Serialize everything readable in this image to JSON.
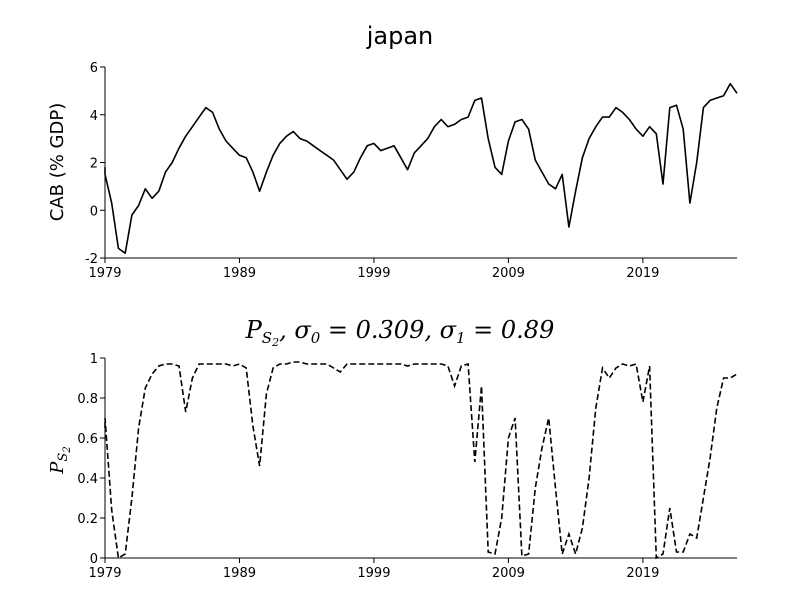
{
  "chart_data": [
    {
      "type": "line",
      "title": "japan",
      "xlabel": "",
      "ylabel": "CAB (% GDP)",
      "xlim": [
        1979,
        2026
      ],
      "ylim": [
        -2,
        6
      ],
      "xticks": [
        1979,
        1989,
        1999,
        2009,
        2019
      ],
      "xtick_labels": [
        "1979",
        "1989",
        "1999",
        "2009",
        "2019"
      ],
      "yticks": [
        -2,
        0,
        2,
        4,
        6
      ],
      "ytick_labels": [
        "-2",
        "0",
        "2",
        "4",
        "6"
      ],
      "grid": false,
      "series": [
        {
          "name": "CAB",
          "style": "solid",
          "x": [
            1978.5,
            1979,
            1979.5,
            1980,
            1980.5,
            1981,
            1981.5,
            1982,
            1982.5,
            1983,
            1983.5,
            1984,
            1984.5,
            1985,
            1985.5,
            1986,
            1986.5,
            1987,
            1987.5,
            1988,
            1988.5,
            1989,
            1989.5,
            1990,
            1990.5,
            1991,
            1991.5,
            1992,
            1992.5,
            1993,
            1993.5,
            1994,
            1994.5,
            1995,
            1995.5,
            1996,
            1996.5,
            1997,
            1997.5,
            1998,
            1998.5,
            1999,
            1999.5,
            2000,
            2000.5,
            2001,
            2001.5,
            2002,
            2002.5,
            2003,
            2003.5,
            2004,
            2004.5,
            2005,
            2005.5,
            2006,
            2006.5,
            2007,
            2007.5,
            2008,
            2008.5,
            2009,
            2009.5,
            2010,
            2010.5,
            2011,
            2011.5,
            2012,
            2012.5,
            2013,
            2013.5,
            2014,
            2014.5,
            2015,
            2015.5,
            2016,
            2016.5,
            2017,
            2017.5,
            2018,
            2018.5,
            2019,
            2019.5,
            2020,
            2020.5,
            2021,
            2021.5,
            2022,
            2022.5,
            2023,
            2023.5,
            2024,
            2024.5,
            2025,
            2025.5,
            2026
          ],
          "values": [
            1.8,
            1.5,
            0.3,
            -1.6,
            -1.8,
            -0.2,
            0.2,
            0.9,
            0.5,
            0.8,
            1.6,
            2.0,
            2.6,
            3.1,
            3.5,
            3.9,
            4.3,
            4.1,
            3.4,
            2.9,
            2.6,
            2.3,
            2.2,
            1.6,
            0.8,
            1.6,
            2.3,
            2.8,
            3.1,
            3.3,
            3.0,
            2.9,
            2.7,
            2.5,
            2.3,
            2.1,
            1.7,
            1.3,
            1.6,
            2.2,
            2.7,
            2.8,
            2.5,
            2.6,
            2.7,
            2.2,
            1.7,
            2.4,
            2.7,
            3.0,
            3.5,
            3.8,
            3.5,
            3.6,
            3.8,
            3.9,
            4.6,
            4.7,
            3.0,
            1.8,
            1.5,
            2.9,
            3.7,
            3.8,
            3.4,
            2.1,
            1.6,
            1.1,
            0.9,
            1.5,
            -0.7,
            0.8,
            2.2,
            3.0,
            3.5,
            3.9,
            3.9,
            4.3,
            4.1,
            3.8,
            3.4,
            3.1,
            3.5,
            3.2,
            1.1,
            4.3,
            4.4,
            3.4,
            0.3,
            2.0,
            4.3,
            4.6,
            4.7,
            4.8,
            5.3,
            4.9
          ]
        }
      ]
    },
    {
      "type": "line",
      "title_parts": [
        "P",
        "S",
        "2",
        ", σ",
        "0",
        " = 0.309, σ",
        "1",
        " = 0.89"
      ],
      "xlabel": "",
      "ylabel_parts": [
        "P",
        "S",
        "2"
      ],
      "xlim": [
        1979,
        2026
      ],
      "ylim": [
        0,
        1
      ],
      "xticks": [
        1979,
        1989,
        1999,
        2009,
        2019
      ],
      "xtick_labels": [
        "1979",
        "1989",
        "1999",
        "2009",
        "2019"
      ],
      "yticks": [
        0,
        0.2,
        0.4,
        0.6,
        0.8,
        1
      ],
      "ytick_labels": [
        "0",
        "0.2",
        "0.4",
        "0.6",
        "0.8",
        "1"
      ],
      "grid": false,
      "series": [
        {
          "name": "P_S2",
          "style": "dashed",
          "x": [
            1978.5,
            1979,
            1979.5,
            1980,
            1980.5,
            1981,
            1981.5,
            1982,
            1982.5,
            1983,
            1983.5,
            1984,
            1984.5,
            1985,
            1985.5,
            1986,
            1986.5,
            1987,
            1987.5,
            1988,
            1988.5,
            1989,
            1989.5,
            1990,
            1990.5,
            1991,
            1991.5,
            1992,
            1992.5,
            1993,
            1993.5,
            1994,
            1994.5,
            1995,
            1995.5,
            1996,
            1996.5,
            1997,
            1997.5,
            1998,
            1998.5,
            1999,
            1999.5,
            2000,
            2000.5,
            2001,
            2001.5,
            2002,
            2002.5,
            2003,
            2003.5,
            2004,
            2004.5,
            2005,
            2005.5,
            2006,
            2006.5,
            2007,
            2007.5,
            2008,
            2008.5,
            2009,
            2009.5,
            2010,
            2010.5,
            2011,
            2011.5,
            2012,
            2012.5,
            2013,
            2013.5,
            2014,
            2014.5,
            2015,
            2015.5,
            2016,
            2016.5,
            2017,
            2017.5,
            2018,
            2018.5,
            2019,
            2019.5,
            2020,
            2020.5,
            2021,
            2021.5,
            2022,
            2022.5,
            2023,
            2023.5,
            2024,
            2024.5,
            2025,
            2025.5,
            2026
          ],
          "values": [
            0.65,
            0.7,
            0.24,
            0.0,
            0.02,
            0.3,
            0.65,
            0.85,
            0.92,
            0.96,
            0.97,
            0.97,
            0.96,
            0.73,
            0.9,
            0.97,
            0.97,
            0.97,
            0.97,
            0.97,
            0.96,
            0.97,
            0.95,
            0.66,
            0.46,
            0.82,
            0.95,
            0.97,
            0.97,
            0.98,
            0.98,
            0.97,
            0.97,
            0.97,
            0.97,
            0.95,
            0.93,
            0.97,
            0.97,
            0.97,
            0.97,
            0.97,
            0.97,
            0.97,
            0.97,
            0.97,
            0.96,
            0.97,
            0.97,
            0.97,
            0.97,
            0.97,
            0.96,
            0.86,
            0.96,
            0.97,
            0.48,
            0.86,
            0.03,
            0.02,
            0.2,
            0.6,
            0.7,
            0.01,
            0.02,
            0.35,
            0.55,
            0.7,
            0.35,
            0.02,
            0.12,
            0.02,
            0.15,
            0.4,
            0.75,
            0.95,
            0.9,
            0.95,
            0.97,
            0.96,
            0.97,
            0.78,
            0.96,
            0.0,
            0.02,
            0.25,
            0.03,
            0.03,
            0.12,
            0.1,
            0.3,
            0.5,
            0.75,
            0.9,
            0.9,
            0.92
          ]
        }
      ]
    }
  ]
}
